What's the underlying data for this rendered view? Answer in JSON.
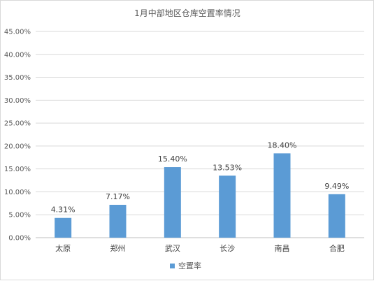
{
  "chart_data": {
    "type": "bar",
    "title": "1月中部地区仓库空置率情况",
    "categories": [
      "太原",
      "郑州",
      "武汉",
      "长沙",
      "南昌",
      "合肥"
    ],
    "series": [
      {
        "name": "空置率",
        "values": [
          4.31,
          7.17,
          15.4,
          13.53,
          18.4,
          9.49
        ],
        "data_labels": [
          "4.31%",
          "7.17%",
          "15.40%",
          "13.53%",
          "18.40%",
          "9.49%"
        ],
        "color": "#5b9bd5"
      }
    ],
    "ylim": [
      0,
      45
    ],
    "yticks": [
      "0.00%",
      "5.00%",
      "10.00%",
      "15.00%",
      "20.00%",
      "25.00%",
      "30.00%",
      "35.00%",
      "40.00%",
      "45.00%"
    ],
    "grid": true,
    "legend": "bottom",
    "xlabel": "",
    "ylabel": ""
  }
}
